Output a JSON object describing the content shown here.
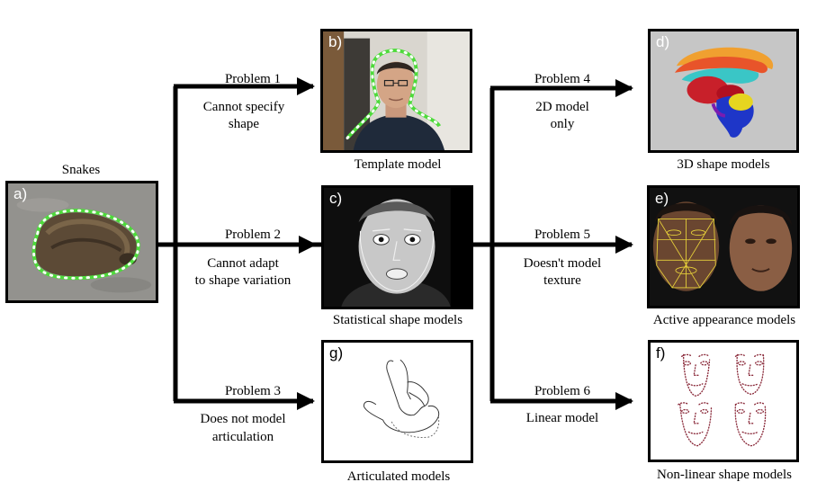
{
  "snakes": {
    "title": "Snakes",
    "letter": "a)"
  },
  "panels": {
    "b": {
      "letter": "b)",
      "caption": "Template model"
    },
    "c": {
      "letter": "c)",
      "caption": "Statistical shape models"
    },
    "g": {
      "letter": "g)",
      "caption": "Articulated models"
    },
    "d": {
      "letter": "d)",
      "caption": "3D shape models"
    },
    "e": {
      "letter": "e)",
      "caption": "Active appearance models"
    },
    "f": {
      "letter": "f)",
      "caption": "Non-linear shape models"
    }
  },
  "problems": [
    {
      "title": "Problem 1",
      "line1": "Cannot specify",
      "line2": "shape"
    },
    {
      "title": "Problem 2",
      "line1": "Cannot adapt",
      "line2": "to shape variation"
    },
    {
      "title": "Problem 3",
      "line1": "Does not model",
      "line2": "articulation"
    },
    {
      "title": "Problem 4",
      "line1": "2D model",
      "line2": "only"
    },
    {
      "title": "Problem 5",
      "line1": "Doesn't model",
      "line2": "texture"
    },
    {
      "title": "Problem 6",
      "line1": "Linear model",
      "line2": ""
    }
  ],
  "colors": {
    "arrow": "#000000",
    "contour": "#4ddb3a",
    "contour_dots": "#ffffff",
    "aam_mesh": "#e8d23a",
    "landmarks": "#8a2a3a"
  }
}
